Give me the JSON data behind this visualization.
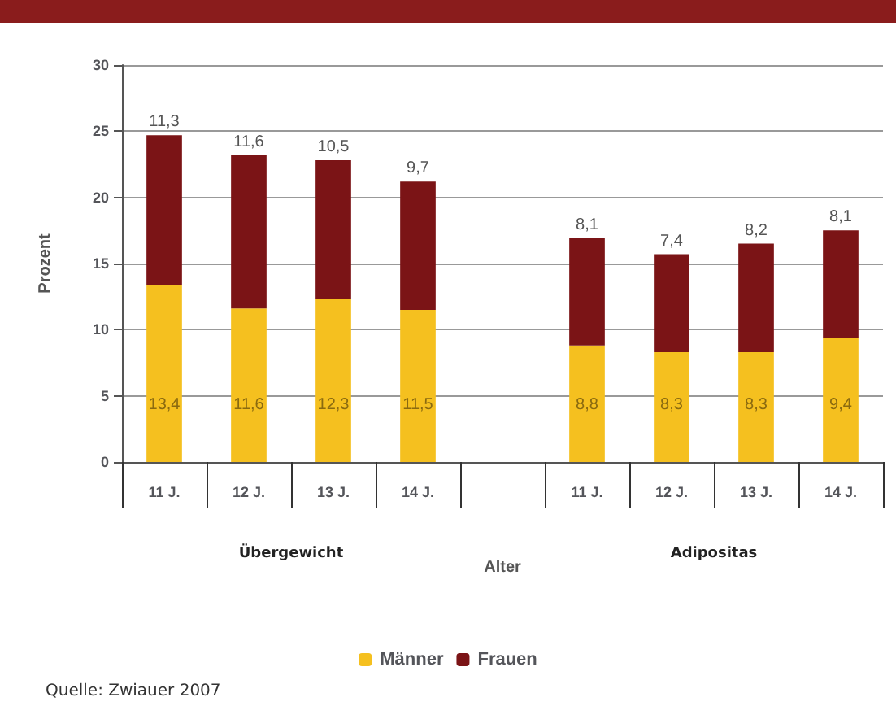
{
  "chart_data": {
    "type": "bar",
    "stacked": true,
    "ylabel": "Prozent",
    "xlabel": "Alter",
    "categories": [
      "11 J.",
      "12 J.",
      "13 J.",
      "14 J.",
      null,
      "11 J.",
      "12 J.",
      "13 J.",
      "14 J."
    ],
    "series": [
      {
        "name": "Männer",
        "color": "#f5c01f",
        "values": [
          13.4,
          11.6,
          12.3,
          11.5,
          null,
          8.8,
          8.3,
          8.3,
          9.4
        ],
        "value_labels": [
          "13,4",
          "11,6",
          "12,3",
          "11,5",
          null,
          "8,8",
          "8,3",
          "8,3",
          "9,4"
        ]
      },
      {
        "name": "Frauen",
        "color": "#7b1416",
        "values": [
          11.3,
          11.6,
          10.5,
          9.7,
          null,
          8.1,
          7.4,
          8.2,
          8.1
        ],
        "value_labels": [
          "11,3",
          "11,6",
          "10,5",
          "9,7",
          null,
          "8,1",
          "7,4",
          "8,2",
          "8,1"
        ]
      }
    ],
    "ylim": [
      0,
      30
    ],
    "yticks": [
      0,
      5,
      10,
      15,
      20,
      25,
      30
    ],
    "grid": "y",
    "legend": "bottom",
    "annotations": [
      "Übergewicht",
      "Adipositas",
      "Quelle: Zwiauer 2007"
    ]
  }
}
